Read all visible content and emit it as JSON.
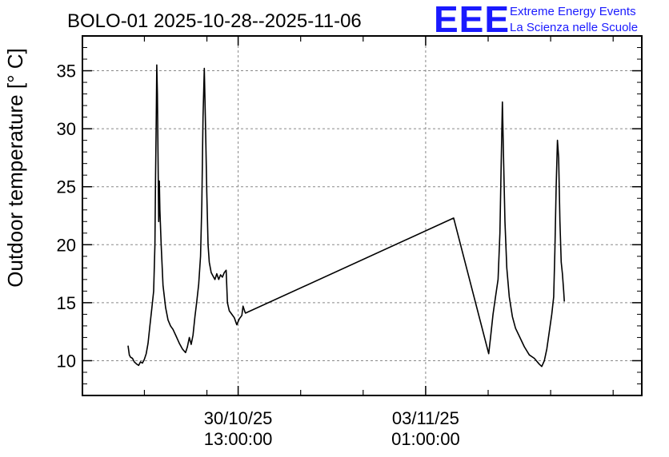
{
  "chart_data": {
    "type": "line",
    "title": "BOLO-01 2025-10-28--2025-11-06",
    "ylabel": "Outdoor temperature [° C]",
    "xlabel": "",
    "ylim": [
      7,
      38
    ],
    "yticks": [
      10,
      15,
      20,
      25,
      30,
      35
    ],
    "x_unit": "days since 2025-10-28 00:00",
    "xlim": [
      0.05,
      9.0
    ],
    "xticks": [
      {
        "x": 2.5417,
        "line1": "30/10/25",
        "line2": "13:00:00"
      },
      {
        "x": 5.5417,
        "line1": "03/11/25",
        "line2": "01:00:00"
      }
    ],
    "x_minor_ticks": [
      1.0417,
      2.0417,
      3.5417,
      4.5417,
      6.5417,
      7.5417,
      8.5417
    ],
    "grid": true,
    "series": [
      {
        "name": "",
        "color": "#000000",
        "points": [
          [
            0.78,
            11.3
          ],
          [
            0.8,
            10.5
          ],
          [
            0.82,
            10.3
          ],
          [
            0.85,
            10.2
          ],
          [
            0.88,
            9.9
          ],
          [
            0.92,
            9.7
          ],
          [
            0.95,
            9.6
          ],
          [
            0.98,
            9.9
          ],
          [
            1.01,
            9.8
          ],
          [
            1.04,
            10.1
          ],
          [
            1.07,
            10.6
          ],
          [
            1.1,
            11.5
          ],
          [
            1.13,
            13.0
          ],
          [
            1.16,
            14.5
          ],
          [
            1.19,
            16.0
          ],
          [
            1.21,
            20.0
          ],
          [
            1.22,
            26.0
          ],
          [
            1.23,
            30.5
          ],
          [
            1.24,
            35.5
          ],
          [
            1.25,
            33.0
          ],
          [
            1.26,
            27.5
          ],
          [
            1.27,
            22.0
          ],
          [
            1.28,
            25.5
          ],
          [
            1.29,
            23.0
          ],
          [
            1.31,
            20.0
          ],
          [
            1.34,
            16.5
          ],
          [
            1.38,
            14.6
          ],
          [
            1.42,
            13.5
          ],
          [
            1.46,
            13.0
          ],
          [
            1.5,
            12.7
          ],
          [
            1.55,
            12.1
          ],
          [
            1.6,
            11.5
          ],
          [
            1.65,
            11.0
          ],
          [
            1.7,
            10.7
          ],
          [
            1.73,
            11.2
          ],
          [
            1.76,
            12.0
          ],
          [
            1.79,
            11.4
          ],
          [
            1.82,
            12.2
          ],
          [
            1.85,
            13.8
          ],
          [
            1.88,
            15.1
          ],
          [
            1.91,
            16.6
          ],
          [
            1.94,
            19.0
          ],
          [
            1.96,
            23.5
          ],
          [
            1.98,
            31.0
          ],
          [
            2.0,
            35.2
          ],
          [
            2.02,
            30.0
          ],
          [
            2.04,
            24.5
          ],
          [
            2.06,
            20.0
          ],
          [
            2.08,
            18.5
          ],
          [
            2.11,
            17.6
          ],
          [
            2.14,
            17.3
          ],
          [
            2.17,
            17.0
          ],
          [
            2.2,
            17.5
          ],
          [
            2.23,
            17.0
          ],
          [
            2.26,
            17.4
          ],
          [
            2.29,
            17.2
          ],
          [
            2.32,
            17.6
          ],
          [
            2.35,
            17.8
          ],
          [
            2.37,
            15.0
          ],
          [
            2.4,
            14.3
          ],
          [
            2.44,
            14.0
          ],
          [
            2.48,
            13.7
          ],
          [
            2.52,
            13.1
          ],
          [
            2.56,
            13.6
          ],
          [
            2.6,
            13.9
          ],
          [
            2.62,
            14.7
          ],
          [
            2.65,
            14.2
          ],
          [
            2.66,
            14.1
          ],
          [
            5.99,
            22.3
          ],
          [
            6.55,
            10.6
          ],
          [
            6.58,
            12.0
          ],
          [
            6.62,
            14.0
          ],
          [
            6.66,
            15.5
          ],
          [
            6.7,
            17.0
          ],
          [
            6.73,
            21.0
          ],
          [
            6.75,
            27.0
          ],
          [
            6.77,
            32.3
          ],
          [
            6.79,
            27.0
          ],
          [
            6.81,
            22.0
          ],
          [
            6.84,
            18.0
          ],
          [
            6.88,
            15.5
          ],
          [
            6.93,
            13.8
          ],
          [
            6.98,
            12.8
          ],
          [
            7.05,
            12.0
          ],
          [
            7.12,
            11.2
          ],
          [
            7.2,
            10.5
          ],
          [
            7.28,
            10.2
          ],
          [
            7.36,
            9.7
          ],
          [
            7.4,
            9.5
          ],
          [
            7.44,
            10.0
          ],
          [
            7.48,
            11.0
          ],
          [
            7.52,
            12.5
          ],
          [
            7.56,
            14.0
          ],
          [
            7.59,
            15.5
          ],
          [
            7.61,
            19.5
          ],
          [
            7.63,
            25.0
          ],
          [
            7.65,
            29.0
          ],
          [
            7.67,
            27.5
          ],
          [
            7.69,
            22.0
          ],
          [
            7.71,
            18.5
          ],
          [
            7.73,
            17.5
          ],
          [
            7.75,
            16.0
          ],
          [
            7.76,
            15.1
          ]
        ]
      }
    ]
  },
  "logo": {
    "letters": "EEE",
    "line1": "Extreme Energy Events",
    "line2": "La Scienza nelle Scuole"
  }
}
